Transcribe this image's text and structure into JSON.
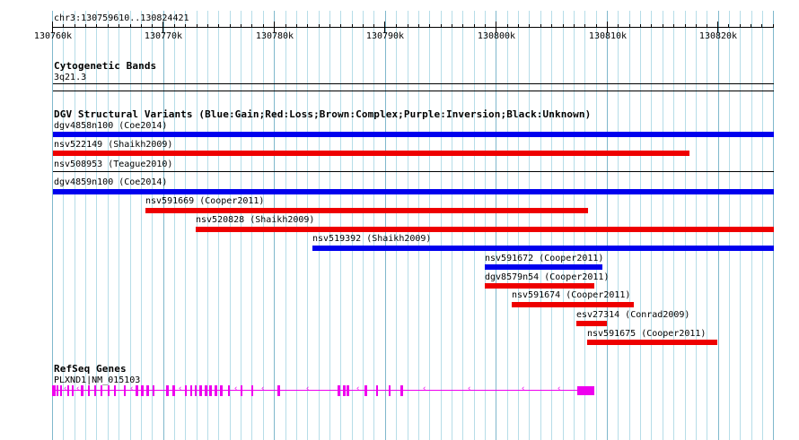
{
  "ruler": {
    "region": "chr3:130759610..130824421",
    "ticks": [
      "130760k",
      "130770k",
      "130780k",
      "130790k",
      "130800k",
      "130810k",
      "130820k"
    ]
  },
  "cytoband": {
    "title": "Cytogenetic Bands",
    "band": "3q21.3"
  },
  "dgv": {
    "title": "DGV Structural Variants (Blue:Gain;Red:Loss;Brown:Complex;Purple:Inversion;Black:Unknown)",
    "colors": {
      "gain": "#0000ee",
      "loss": "#ee0000",
      "unknown": "#000000"
    },
    "variants": [
      {
        "label": "dgv4858n100 (Coe2014)",
        "type": "gain"
      },
      {
        "label": "nsv522149 (Shaikh2009)",
        "type": "loss"
      },
      {
        "label": "nsv508953 (Teague2010)",
        "type": "unknown"
      },
      {
        "label": "dgv4859n100 (Coe2014)",
        "type": "gain"
      },
      {
        "label": "nsv591669 (Cooper2011)",
        "type": "loss"
      },
      {
        "label": "nsv520828 (Shaikh2009)",
        "type": "loss"
      },
      {
        "label": "nsv519392 (Shaikh2009)",
        "type": "gain"
      },
      {
        "label": "nsv591672 (Cooper2011)",
        "type": "gain"
      },
      {
        "label": "dgv8579n54 (Cooper2011)",
        "type": "loss"
      },
      {
        "label": "nsv591674 (Cooper2011)",
        "type": "loss"
      },
      {
        "label": "esv27314 (Conrad2009)",
        "type": "loss"
      },
      {
        "label": "nsv591675 (Cooper2011)",
        "type": "loss"
      }
    ]
  },
  "refseq": {
    "title": "RefSeq Genes",
    "gene_label": "PLXND1|NM_015103",
    "color": "#ee00ee"
  }
}
